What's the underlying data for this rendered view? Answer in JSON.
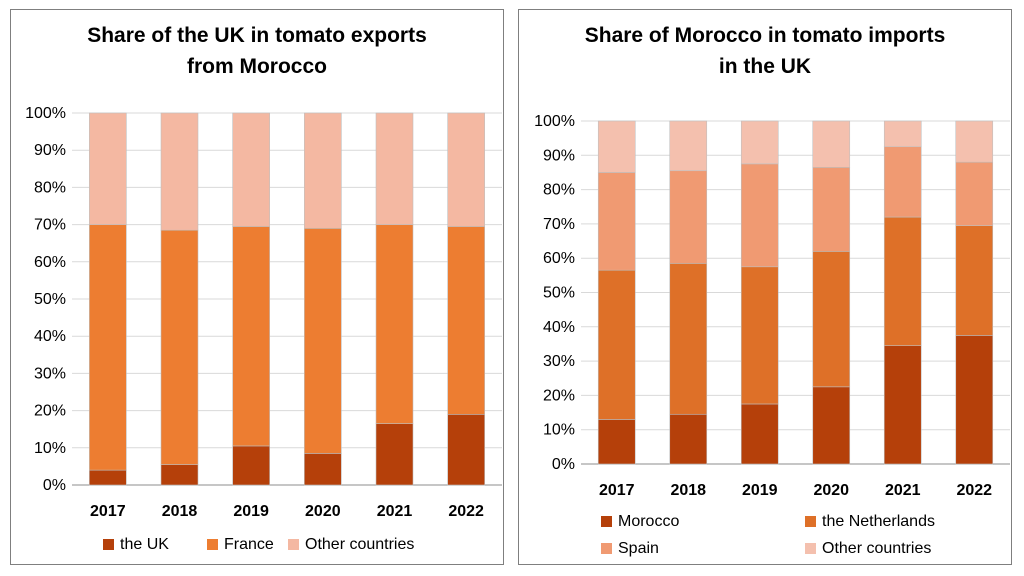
{
  "chart_data": [
    {
      "type": "bar",
      "stacked": true,
      "title_line1": "Share of the UK in tomato exports",
      "title_line2": "from Morocco",
      "categories": [
        "2017",
        "2018",
        "2019",
        "2020",
        "2021",
        "2022"
      ],
      "y_ticks": [
        "0%",
        "10%",
        "20%",
        "30%",
        "40%",
        "50%",
        "60%",
        "70%",
        "80%",
        "90%",
        "100%"
      ],
      "ylim": [
        0,
        100
      ],
      "grid": true,
      "legend_position": "bottom",
      "series": [
        {
          "name": "the UK",
          "color": "#b5400a",
          "values": [
            4,
            5.5,
            10.5,
            8.5,
            16.5,
            19
          ]
        },
        {
          "name": "France",
          "color": "#ed7d31",
          "values": [
            66,
            63,
            59,
            60.5,
            53.5,
            50.5
          ]
        },
        {
          "name": "Other countries",
          "color": "#f4b8a2",
          "values": [
            30,
            31.5,
            30.5,
            31,
            30,
            30.5
          ]
        }
      ]
    },
    {
      "type": "bar",
      "stacked": true,
      "title_line1": "Share of Morocco in tomato imports",
      "title_line2": "in the UK",
      "categories": [
        "2017",
        "2018",
        "2019",
        "2020",
        "2021",
        "2022"
      ],
      "y_ticks": [
        "0%",
        "10%",
        "20%",
        "30%",
        "40%",
        "50%",
        "60%",
        "70%",
        "80%",
        "90%",
        "100%"
      ],
      "ylim": [
        0,
        100
      ],
      "grid": true,
      "legend_position": "bottom",
      "series": [
        {
          "name": "Morocco",
          "color": "#b5400a",
          "values": [
            13,
            14.5,
            17.5,
            22.5,
            34.5,
            37.5
          ]
        },
        {
          "name": "the Netherlands",
          "color": "#de7028",
          "values": [
            43.5,
            44,
            40,
            39.5,
            37.5,
            32
          ]
        },
        {
          "name": "Spain",
          "color": "#f09a72",
          "values": [
            28.5,
            27,
            30,
            24.5,
            20.5,
            18.5
          ]
        },
        {
          "name": "Other countries",
          "color": "#f4c0ae",
          "values": [
            15,
            14.5,
            12.5,
            13.5,
            7.5,
            12
          ]
        }
      ]
    }
  ]
}
